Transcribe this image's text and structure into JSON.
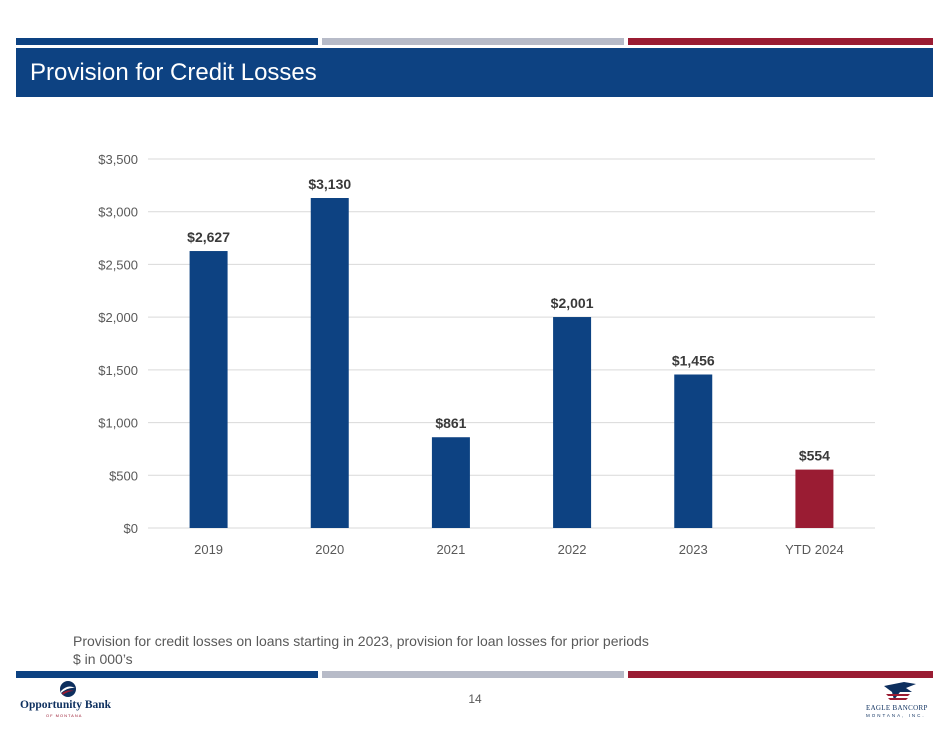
{
  "page": {
    "title": "Provision for Credit Losses",
    "footnote_1": "Provision for credit losses on loans starting in 2023, provision for loan losses for prior periods",
    "footnote_2": "$ in 000’s",
    "page_number": "14"
  },
  "colors": {
    "navy": "#0d4282",
    "gray": "#b7bbc8",
    "red": "#9a1c33"
  },
  "logos": {
    "left": {
      "name": "Opportunity Bank",
      "sub": "OF MONTANA"
    },
    "right": {
      "name": "EAGLE BANCORP",
      "sub": "MONTANA, INC."
    }
  },
  "chart_data": {
    "type": "bar",
    "title": "",
    "xlabel": "",
    "ylabel": "",
    "categories": [
      "2019",
      "2020",
      "2021",
      "2022",
      "2023",
      "YTD 2024"
    ],
    "values": [
      2627,
      3130,
      861,
      2001,
      1456,
      554
    ],
    "data_labels": [
      "$2,627",
      "$3,130",
      "$861",
      "$2,001",
      "$1,456",
      "$554"
    ],
    "bar_colors": [
      "#0d4282",
      "#0d4282",
      "#0d4282",
      "#0d4282",
      "#0d4282",
      "#9a1c33"
    ],
    "ylim": [
      0,
      3500
    ],
    "yticks": [
      0,
      500,
      1000,
      1500,
      2000,
      2500,
      3000,
      3500
    ],
    "ytick_labels": [
      "$0",
      "$500",
      "$1,000",
      "$1,500",
      "$2,000",
      "$2,500",
      "$3,000",
      "$3,500"
    ],
    "grid": true,
    "legend": "none"
  }
}
